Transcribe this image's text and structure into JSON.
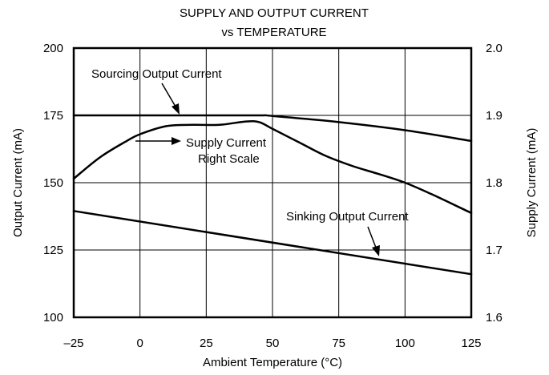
{
  "chart_data": {
    "type": "line",
    "title": "SUPPLY AND OUTPUT CURRENT",
    "subtitle": "vs TEMPERATURE",
    "xlabel": "Ambient Temperature (°C)",
    "ylabel_left": "Output Current (mA)",
    "ylabel_right": "Supply Current (mA)",
    "xlim": [
      -25,
      125
    ],
    "ylim_left": [
      100,
      200
    ],
    "ylim_right": [
      1.6,
      2.0
    ],
    "grid": true,
    "x_ticks": [
      {
        "v": -25,
        "label": "–25"
      },
      {
        "v": 0,
        "label": "0"
      },
      {
        "v": 25,
        "label": "25"
      },
      {
        "v": 50,
        "label": "50"
      },
      {
        "v": 75,
        "label": "75"
      },
      {
        "v": 100,
        "label": "100"
      },
      {
        "v": 125,
        "label": "125"
      }
    ],
    "y_ticks_left": [
      {
        "v": 100,
        "label": "100"
      },
      {
        "v": 125,
        "label": "125"
      },
      {
        "v": 150,
        "label": "150"
      },
      {
        "v": 175,
        "label": "175"
      },
      {
        "v": 200,
        "label": "200"
      }
    ],
    "y_ticks_right": [
      {
        "v": 1.6,
        "label": "1.6"
      },
      {
        "v": 1.7,
        "label": "1.7"
      },
      {
        "v": 1.8,
        "label": "1.8"
      },
      {
        "v": 1.9,
        "label": "1.9"
      },
      {
        "v": 2.0,
        "label": "2.0"
      }
    ],
    "series": [
      {
        "name": "Sourcing Output Current",
        "axis": "left",
        "x": [
          -25,
          0,
          25,
          45,
          50,
          75,
          100,
          125
        ],
        "y": [
          175,
          175,
          175,
          175,
          174.8,
          172.5,
          169.5,
          165.5
        ]
      },
      {
        "name": "Supply Current",
        "axis": "right",
        "x": [
          -25,
          -15,
          -5,
          0,
          10,
          20,
          30,
          40,
          45,
          50,
          60,
          70,
          80,
          90,
          100,
          110,
          125
        ],
        "y": [
          1.806,
          1.838,
          1.862,
          1.872,
          1.884,
          1.886,
          1.886,
          1.891,
          1.89,
          1.88,
          1.86,
          1.84,
          1.825,
          1.813,
          1.8,
          1.783,
          1.755
        ]
      },
      {
        "name": "Sinking Output Current",
        "axis": "left",
        "x": [
          -25,
          125
        ],
        "y": [
          139.5,
          116
        ]
      }
    ],
    "annotations": [
      {
        "text": "Sourcing Output Current"
      },
      {
        "text": "Supply Current"
      },
      {
        "text": "Right Scale"
      },
      {
        "text": "Sinking Output Current"
      }
    ]
  }
}
